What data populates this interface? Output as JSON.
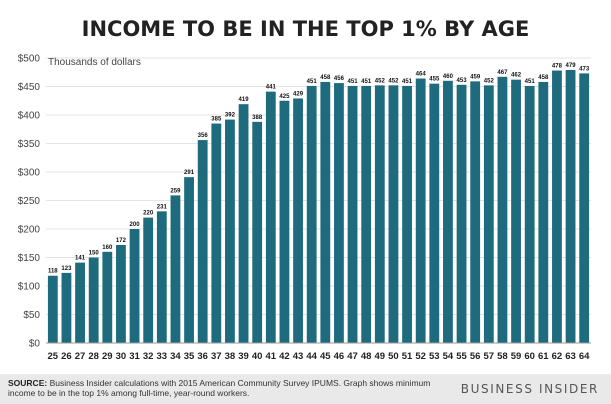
{
  "header": {
    "title": "INCOME TO BE IN THE TOP 1% BY AGE"
  },
  "footer": {
    "source_label": "SOURCE:",
    "source_text": "Business Insider calculations with 2015 American Community Survey IPUMS. Graph shows minimum income to be in the top 1% among full-time, year-round workers.",
    "brand": "BUSINESS INSIDER"
  },
  "colors": {
    "bar": "#1f6b7e",
    "background": "#ffffff",
    "footer": "#e9e9e9"
  },
  "chart_data": {
    "type": "bar",
    "title": "INCOME TO BE IN THE TOP 1% BY AGE",
    "unit_label": "Thousands of dollars",
    "xlabel": "",
    "ylabel": "",
    "ylim": [
      0,
      500
    ],
    "yticks": [
      "$0",
      "$50",
      "$100",
      "$150",
      "$200",
      "$250",
      "$300",
      "$350",
      "$400",
      "$450",
      "$500"
    ],
    "grid": true,
    "legend": "none",
    "categories": [
      "25",
      "26",
      "27",
      "28",
      "29",
      "30",
      "31",
      "32",
      "33",
      "34",
      "35",
      "36",
      "37",
      "38",
      "39",
      "40",
      "41",
      "42",
      "43",
      "44",
      "45",
      "46",
      "47",
      "48",
      "49",
      "50",
      "51",
      "52",
      "53",
      "54",
      "55",
      "56",
      "57",
      "58",
      "59",
      "60",
      "61",
      "62",
      "63",
      "64"
    ],
    "values": [
      118,
      123,
      141,
      150,
      160,
      172,
      200,
      220,
      231,
      259,
      291,
      356,
      385,
      392,
      419,
      388,
      441,
      425,
      429,
      451,
      458,
      456,
      451,
      451,
      452,
      452,
      451,
      464,
      455,
      460,
      453,
      459,
      452,
      467,
      462,
      451,
      458,
      478,
      479,
      473
    ]
  }
}
